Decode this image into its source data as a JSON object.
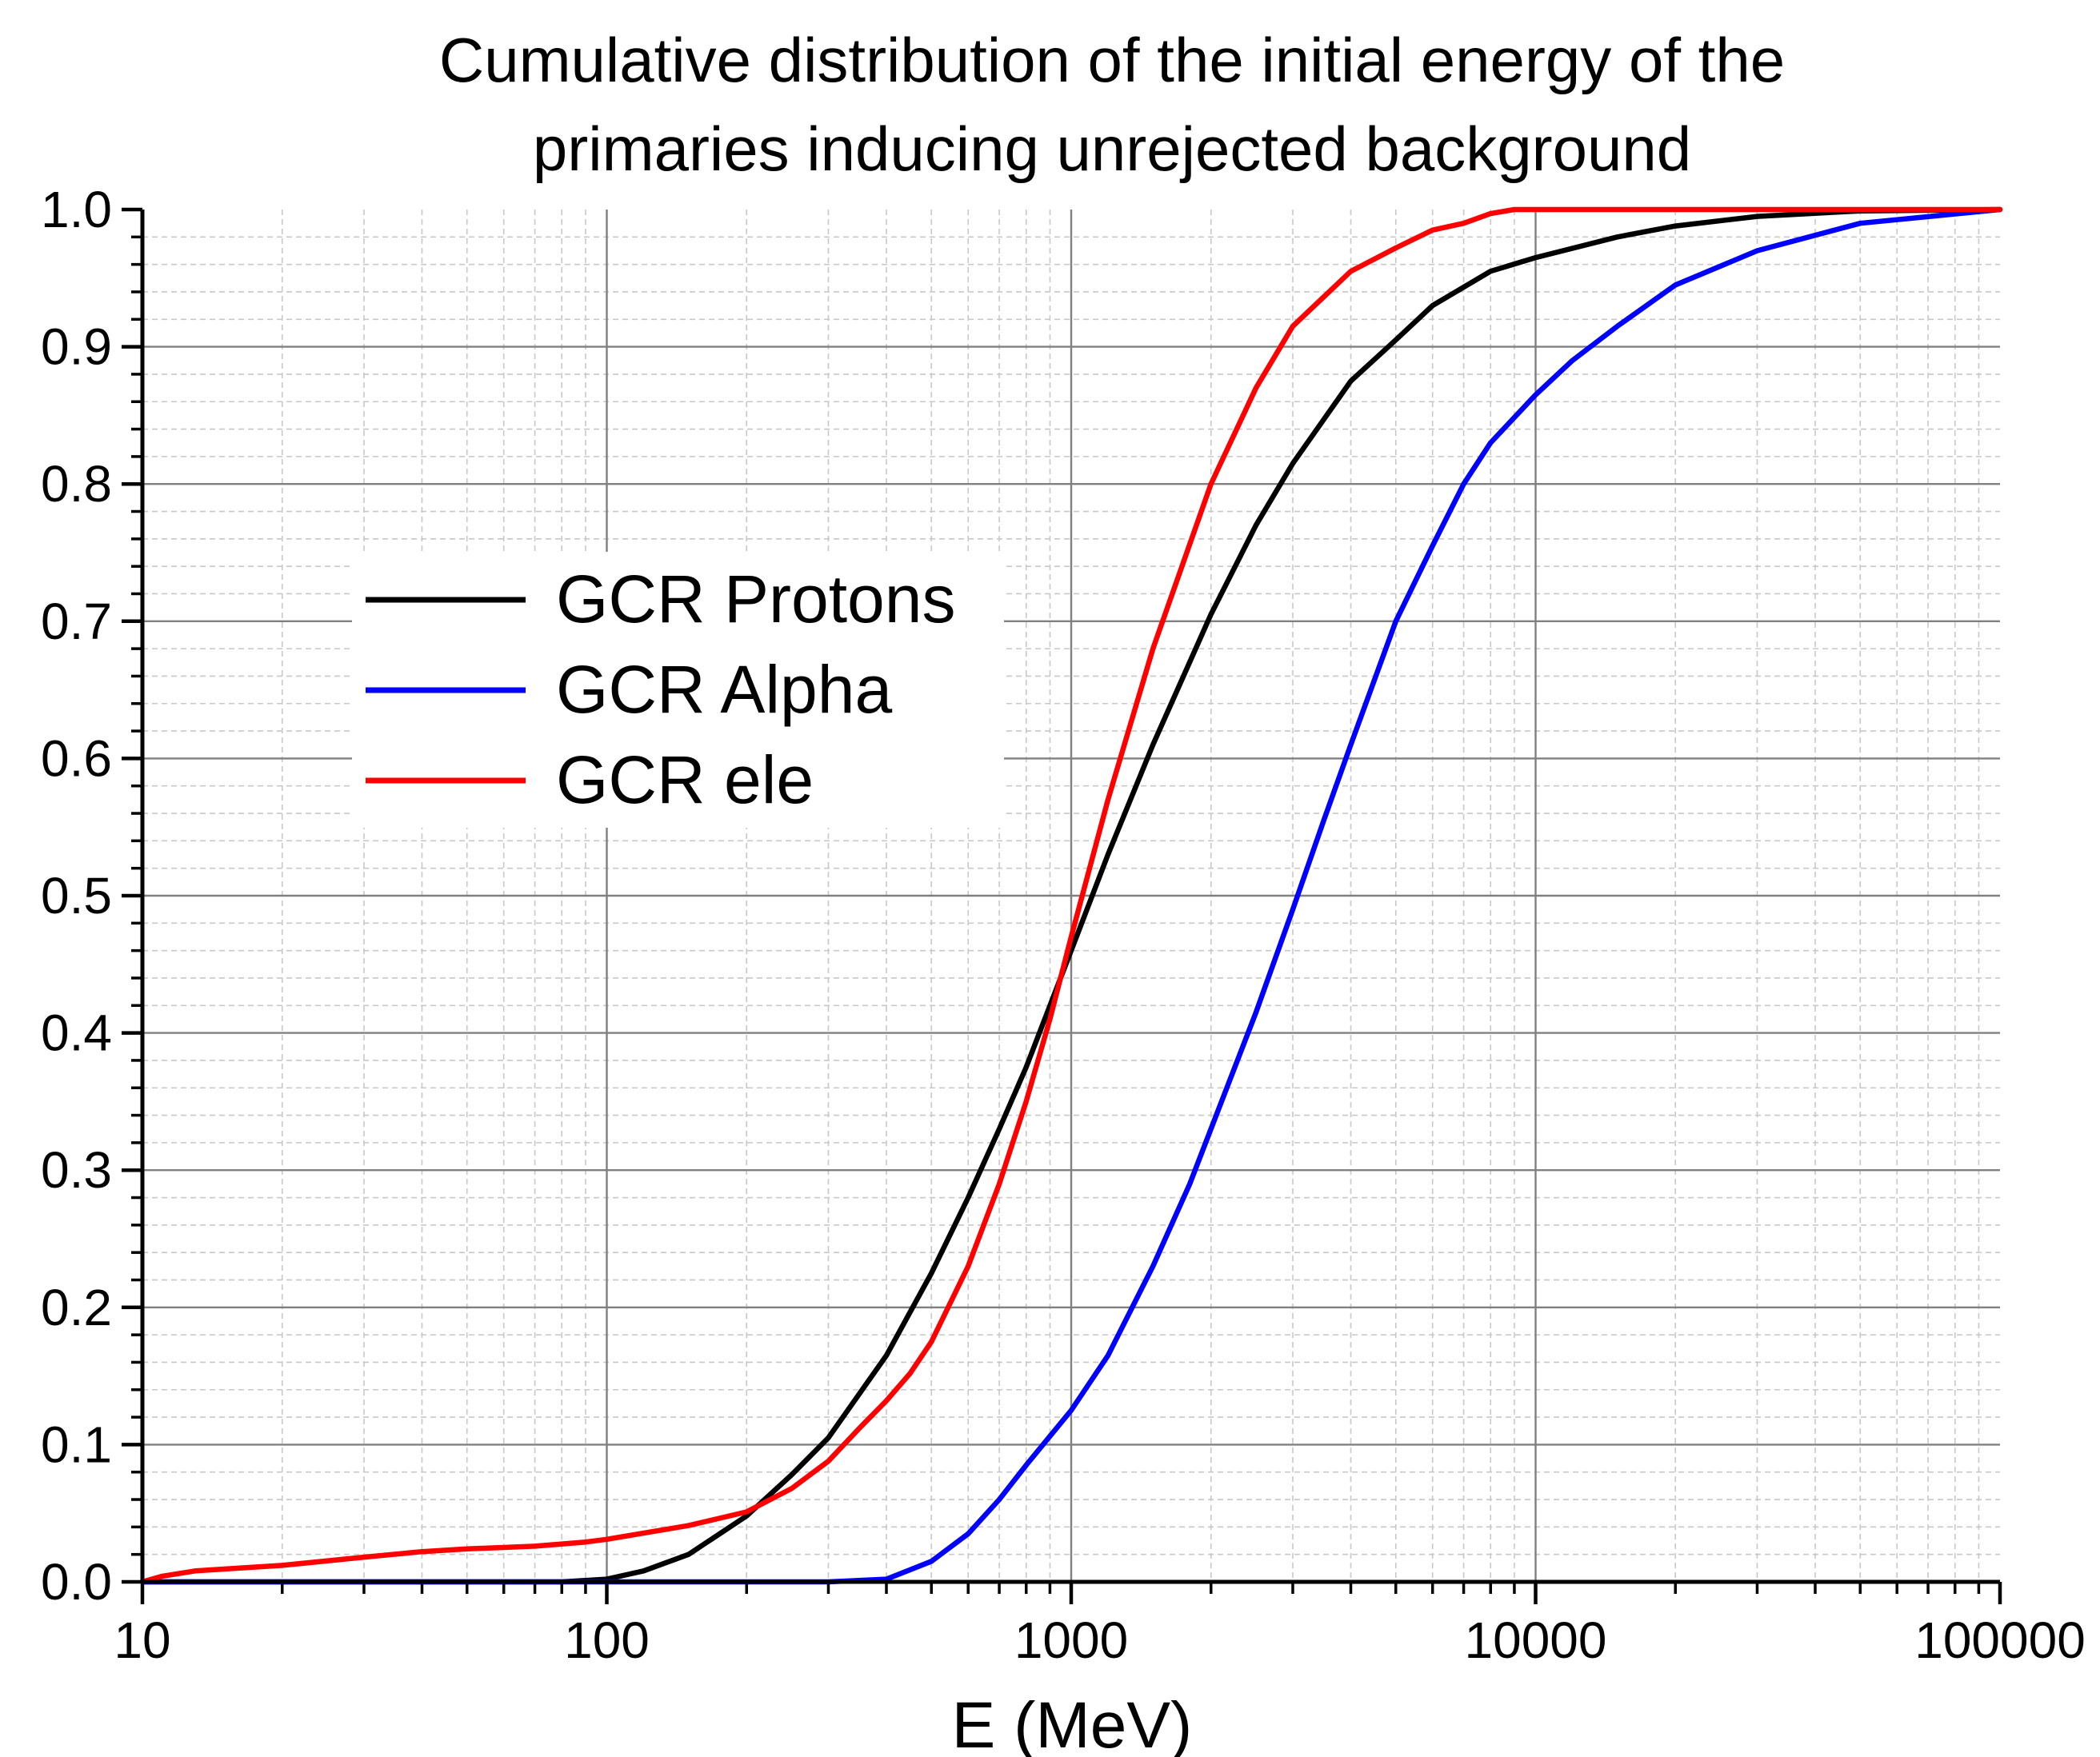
{
  "chart_data": {
    "type": "line",
    "title": [
      "Cumulative distribution of the initial energy of the",
      "primaries inducing unrejected background"
    ],
    "xlabel": "E (MeV)",
    "ylabel": "",
    "xscale": "log",
    "xlim": [
      10,
      100000
    ],
    "ylim": [
      0.0,
      1.0
    ],
    "grid": true,
    "legend_position": "upper-left inside plot",
    "x_tick_labels": [
      "10",
      "100",
      "1000",
      "10000",
      "100000"
    ],
    "y_tick_labels": [
      "0.0",
      "0.1",
      "0.2",
      "0.3",
      "0.4",
      "0.5",
      "0.6",
      "0.7",
      "0.8",
      "0.9",
      "1.0"
    ],
    "series": [
      {
        "name": "GCR Protons",
        "color": "#000000",
        "x": [
          10,
          50,
          80,
          100,
          120,
          150,
          200,
          250,
          300,
          400,
          500,
          600,
          700,
          800,
          1000,
          1200,
          1500,
          2000,
          2500,
          3000,
          4000,
          5000,
          6000,
          8000,
          10000,
          15000,
          20000,
          30000,
          50000,
          100000
        ],
        "y": [
          0.0,
          0.0,
          0.0,
          0.002,
          0.008,
          0.02,
          0.048,
          0.078,
          0.105,
          0.165,
          0.225,
          0.28,
          0.33,
          0.375,
          0.46,
          0.53,
          0.61,
          0.705,
          0.77,
          0.815,
          0.875,
          0.905,
          0.93,
          0.955,
          0.965,
          0.98,
          0.988,
          0.995,
          0.999,
          1.0
        ]
      },
      {
        "name": "GCR Alpha",
        "color": "#0000ff",
        "x": [
          10,
          300,
          400,
          500,
          600,
          700,
          800,
          1000,
          1200,
          1500,
          1800,
          2000,
          2500,
          3000,
          3500,
          4000,
          5000,
          6000,
          7000,
          8000,
          10000,
          12000,
          15000,
          20000,
          30000,
          50000,
          100000
        ],
        "y": [
          0.0,
          0.0,
          0.002,
          0.015,
          0.035,
          0.06,
          0.085,
          0.125,
          0.165,
          0.23,
          0.29,
          0.33,
          0.415,
          0.49,
          0.555,
          0.61,
          0.7,
          0.755,
          0.8,
          0.83,
          0.865,
          0.89,
          0.915,
          0.945,
          0.97,
          0.99,
          1.0
        ]
      },
      {
        "name": "GCR ele",
        "color": "#ff0000",
        "x": [
          10,
          11,
          13,
          20,
          30,
          40,
          50,
          70,
          90,
          100,
          150,
          200,
          250,
          300,
          350,
          400,
          450,
          500,
          600,
          700,
          800,
          900,
          1000,
          1200,
          1500,
          2000,
          2500,
          3000,
          4000,
          5000,
          6000,
          7000,
          8000,
          9000,
          100000
        ],
        "y": [
          0.0,
          0.004,
          0.008,
          0.012,
          0.018,
          0.022,
          0.024,
          0.026,
          0.029,
          0.031,
          0.041,
          0.051,
          0.068,
          0.088,
          0.112,
          0.132,
          0.152,
          0.175,
          0.23,
          0.29,
          0.35,
          0.41,
          0.47,
          0.57,
          0.68,
          0.8,
          0.87,
          0.915,
          0.955,
          0.972,
          0.985,
          0.99,
          0.997,
          1.0,
          1.0
        ]
      }
    ]
  }
}
